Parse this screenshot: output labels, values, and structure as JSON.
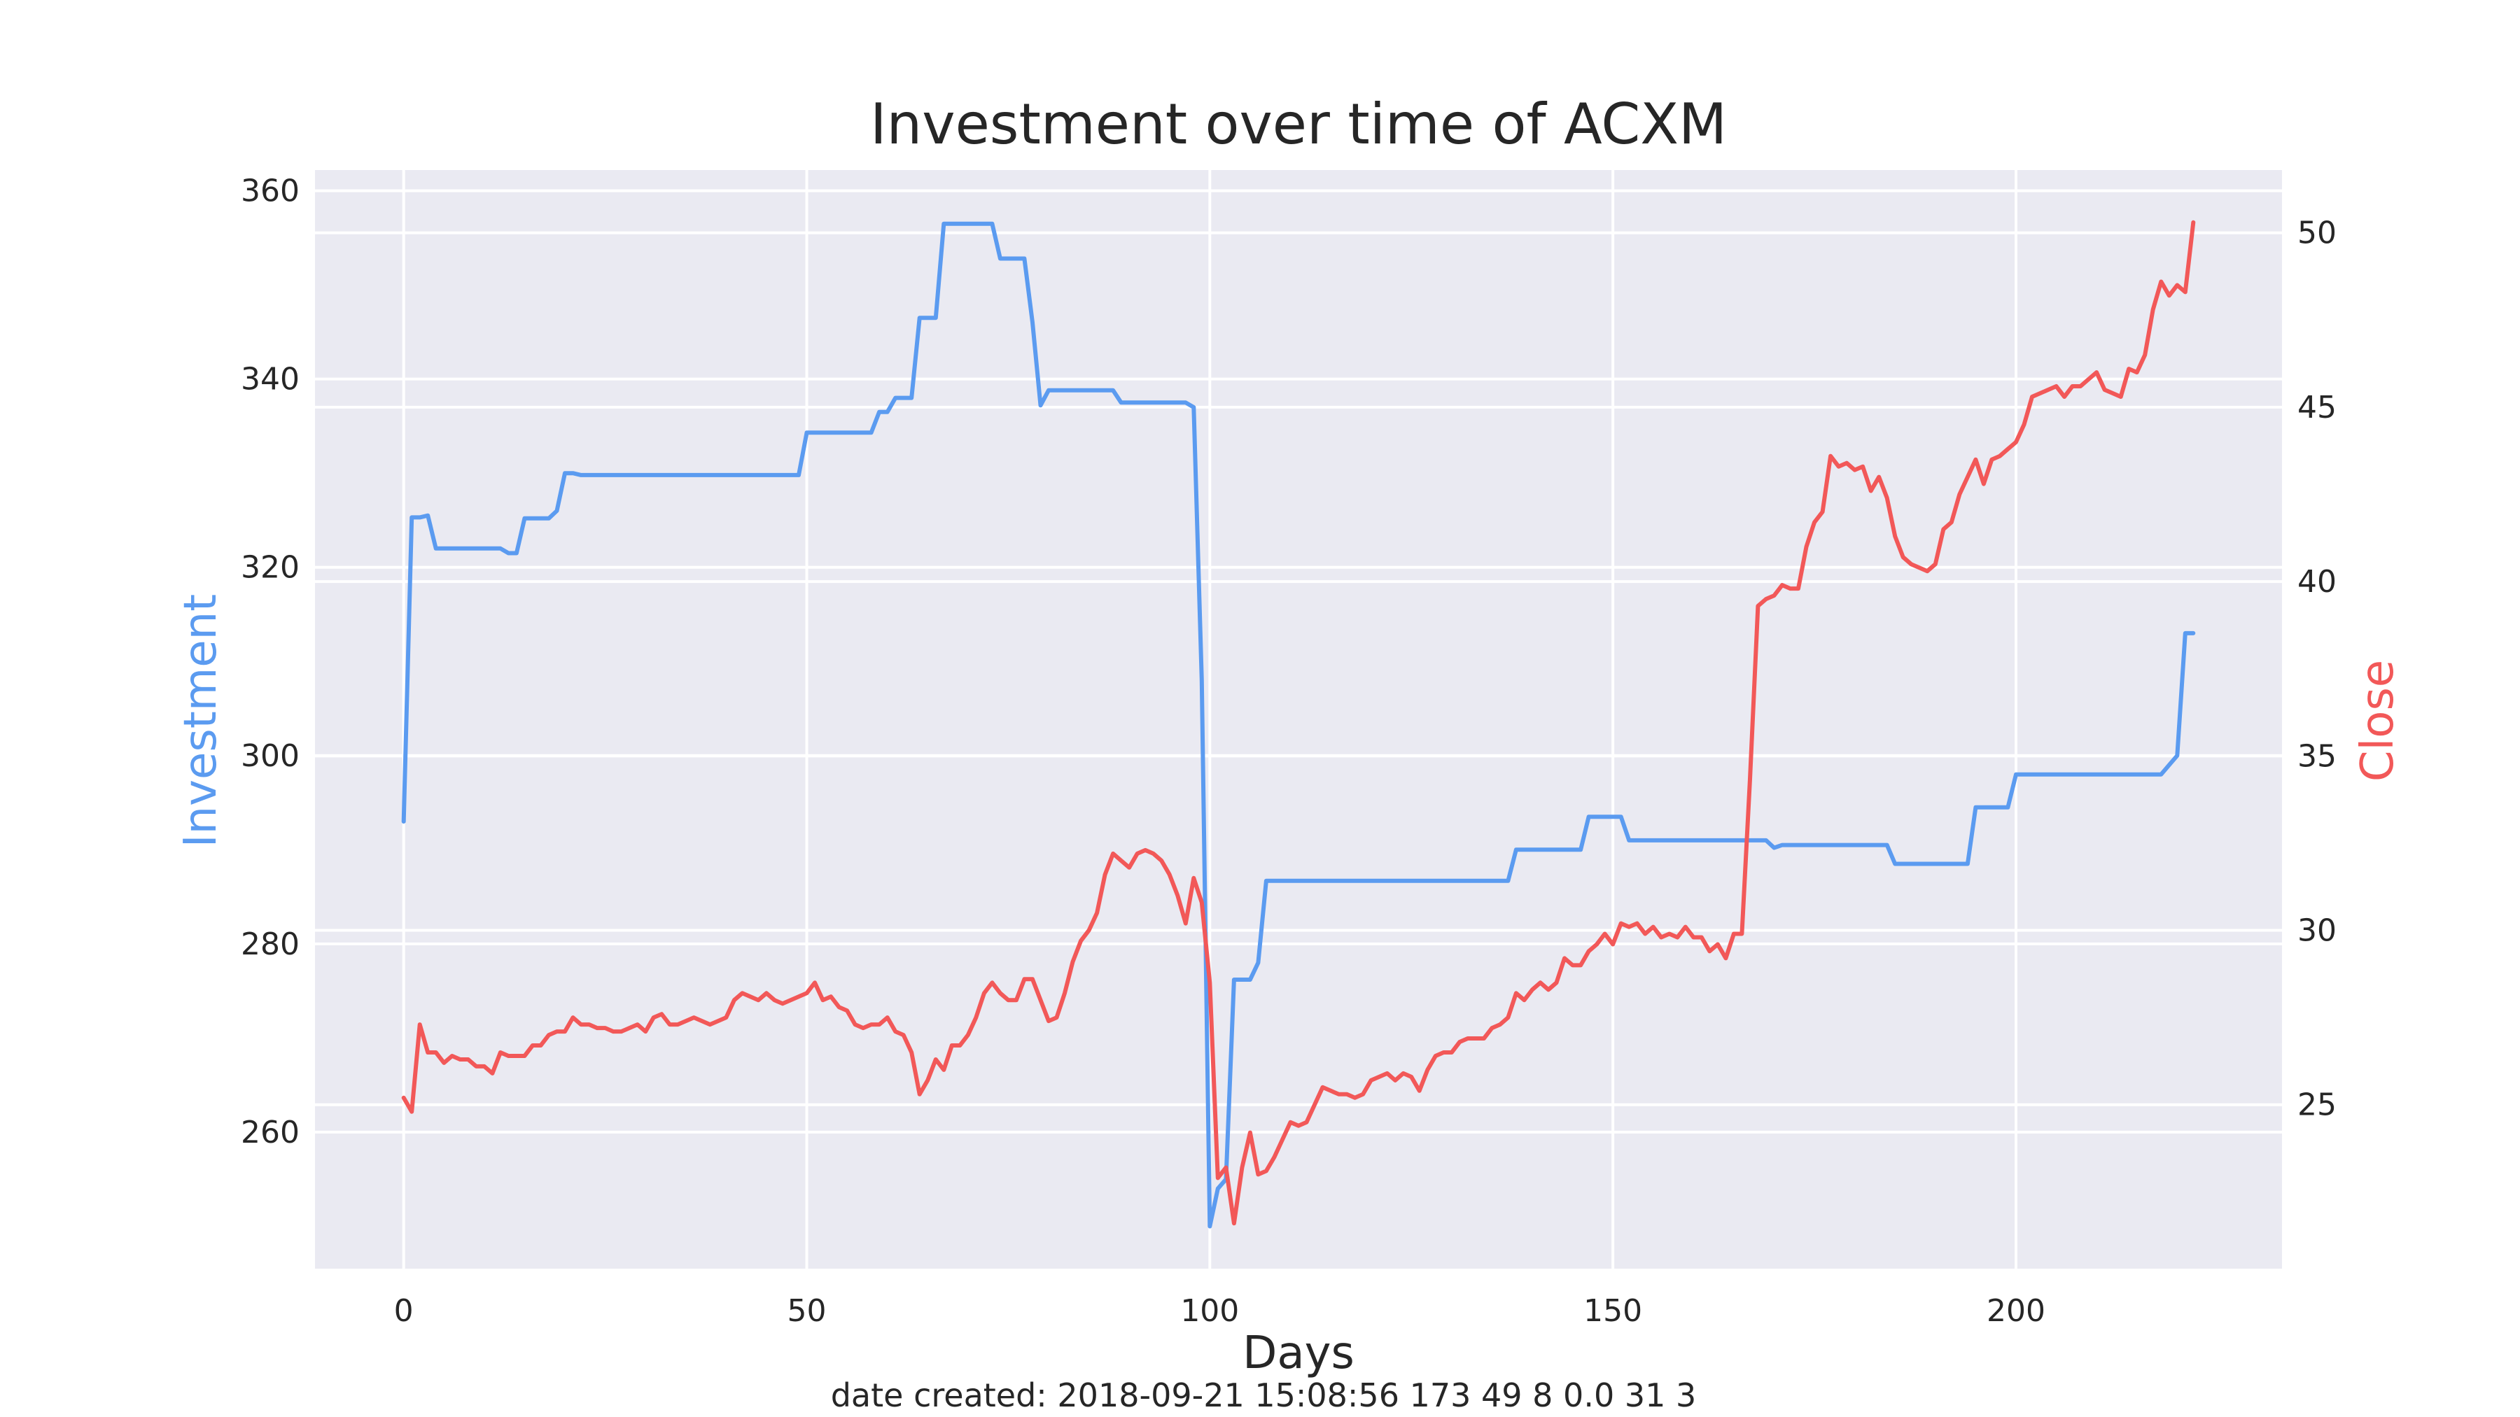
{
  "chart_data": {
    "type": "line",
    "title": "Investment over time of ACXM",
    "xlabel": "Days",
    "footer": "date created: 2018-09-21 15:08:56 173 49 8 0.0 31 3",
    "xlim": [
      -11,
      233
    ],
    "x_ticks": [
      0,
      50,
      100,
      150,
      200
    ],
    "grid": true,
    "axes": [
      {
        "id": "left",
        "label": "Investment",
        "color": "#5b9bf0",
        "ylim": [
          245.5,
          362.2
        ],
        "ticks": [
          260,
          280,
          300,
          320,
          340,
          360
        ]
      },
      {
        "id": "right",
        "label": "Close",
        "color": "#f25858",
        "ylim": [
          20.3,
          51.8
        ],
        "ticks": [
          25,
          30,
          35,
          40,
          45,
          50
        ]
      }
    ],
    "series": [
      {
        "axis": "left",
        "color": "#5b9bf0",
        "points": [
          [
            0,
            293.0
          ],
          [
            1,
            325.3
          ],
          [
            2,
            325.3
          ],
          [
            3,
            325.5
          ],
          [
            4,
            322.0
          ],
          [
            5,
            322.0
          ],
          [
            11,
            322.0
          ],
          [
            12,
            322.0
          ],
          [
            13,
            321.5
          ],
          [
            14,
            321.5
          ],
          [
            15,
            325.2
          ],
          [
            18,
            325.2
          ],
          [
            19,
            326.0
          ],
          [
            20,
            330.0
          ],
          [
            21,
            330.0
          ],
          [
            22,
            329.8
          ],
          [
            49,
            329.8
          ],
          [
            50,
            334.3
          ],
          [
            58,
            334.3
          ],
          [
            59,
            336.5
          ],
          [
            60,
            336.5
          ],
          [
            61,
            338.0
          ],
          [
            63,
            338.0
          ],
          [
            64,
            346.5
          ],
          [
            66,
            346.5
          ],
          [
            67,
            356.5
          ],
          [
            73,
            356.5
          ],
          [
            74,
            352.8
          ],
          [
            77,
            352.8
          ],
          [
            78,
            346.0
          ],
          [
            79,
            337.2
          ],
          [
            80,
            338.8
          ],
          [
            88,
            338.8
          ],
          [
            89,
            337.5
          ],
          [
            97,
            337.5
          ],
          [
            98,
            337.0
          ],
          [
            99,
            308.0
          ],
          [
            100,
            250.0
          ],
          [
            101,
            254.0
          ],
          [
            102,
            255.0
          ],
          [
            103,
            276.2
          ],
          [
            105,
            276.2
          ],
          [
            106,
            278.0
          ],
          [
            107,
            286.7
          ],
          [
            137,
            286.7
          ],
          [
            138,
            290.0
          ],
          [
            146,
            290.0
          ],
          [
            147,
            293.5
          ],
          [
            151,
            293.5
          ],
          [
            152,
            291.0
          ],
          [
            169,
            291.0
          ],
          [
            170,
            290.2
          ],
          [
            171,
            290.5
          ],
          [
            184,
            290.5
          ],
          [
            185,
            288.5
          ],
          [
            194,
            288.5
          ],
          [
            195,
            294.5
          ],
          [
            199,
            294.5
          ],
          [
            200,
            298.0
          ],
          [
            218,
            298.0
          ],
          [
            219,
            299.0
          ],
          [
            220,
            300.0
          ],
          [
            221,
            313.0
          ],
          [
            222,
            313.0
          ]
        ]
      },
      {
        "axis": "right",
        "color": "#f25858",
        "points": [
          [
            0,
            25.2
          ],
          [
            1,
            24.8
          ],
          [
            2,
            27.3
          ],
          [
            3,
            26.5
          ],
          [
            4,
            26.5
          ],
          [
            5,
            26.2
          ],
          [
            6,
            26.4
          ],
          [
            7,
            26.3
          ],
          [
            8,
            26.3
          ],
          [
            9,
            26.1
          ],
          [
            10,
            26.1
          ],
          [
            11,
            25.9
          ],
          [
            12,
            26.5
          ],
          [
            13,
            26.4
          ],
          [
            14,
            26.4
          ],
          [
            15,
            26.4
          ],
          [
            16,
            26.7
          ],
          [
            17,
            26.7
          ],
          [
            18,
            27.0
          ],
          [
            19,
            27.1
          ],
          [
            20,
            27.1
          ],
          [
            21,
            27.5
          ],
          [
            22,
            27.3
          ],
          [
            23,
            27.3
          ],
          [
            24,
            27.2
          ],
          [
            25,
            27.2
          ],
          [
            26,
            27.1
          ],
          [
            27,
            27.1
          ],
          [
            28,
            27.2
          ],
          [
            29,
            27.3
          ],
          [
            30,
            27.1
          ],
          [
            31,
            27.5
          ],
          [
            32,
            27.6
          ],
          [
            33,
            27.3
          ],
          [
            34,
            27.3
          ],
          [
            35,
            27.4
          ],
          [
            36,
            27.5
          ],
          [
            37,
            27.4
          ],
          [
            38,
            27.3
          ],
          [
            39,
            27.4
          ],
          [
            40,
            27.5
          ],
          [
            41,
            28.0
          ],
          [
            42,
            28.2
          ],
          [
            43,
            28.1
          ],
          [
            44,
            28.0
          ],
          [
            45,
            28.2
          ],
          [
            46,
            28.0
          ],
          [
            47,
            27.9
          ],
          [
            48,
            28.0
          ],
          [
            49,
            28.1
          ],
          [
            50,
            28.2
          ],
          [
            51,
            28.5
          ],
          [
            52,
            28.0
          ],
          [
            53,
            28.1
          ],
          [
            54,
            27.8
          ],
          [
            55,
            27.7
          ],
          [
            56,
            27.3
          ],
          [
            57,
            27.2
          ],
          [
            58,
            27.3
          ],
          [
            59,
            27.3
          ],
          [
            60,
            27.5
          ],
          [
            61,
            27.1
          ],
          [
            62,
            27.0
          ],
          [
            63,
            26.5
          ],
          [
            64,
            25.3
          ],
          [
            65,
            25.7
          ],
          [
            66,
            26.3
          ],
          [
            67,
            26.0
          ],
          [
            68,
            26.7
          ],
          [
            69,
            26.7
          ],
          [
            70,
            27.0
          ],
          [
            71,
            27.5
          ],
          [
            72,
            28.2
          ],
          [
            73,
            28.5
          ],
          [
            74,
            28.2
          ],
          [
            75,
            28.0
          ],
          [
            76,
            28.0
          ],
          [
            77,
            28.6
          ],
          [
            78,
            28.6
          ],
          [
            79,
            28.0
          ],
          [
            80,
            27.4
          ],
          [
            81,
            27.5
          ],
          [
            82,
            28.2
          ],
          [
            83,
            29.1
          ],
          [
            84,
            29.7
          ],
          [
            85,
            30.0
          ],
          [
            86,
            30.5
          ],
          [
            87,
            31.6
          ],
          [
            88,
            32.2
          ],
          [
            89,
            32.0
          ],
          [
            90,
            31.8
          ],
          [
            91,
            32.2
          ],
          [
            92,
            32.3
          ],
          [
            93,
            32.2
          ],
          [
            94,
            32.0
          ],
          [
            95,
            31.6
          ],
          [
            96,
            31.0
          ],
          [
            97,
            30.2
          ],
          [
            98,
            31.5
          ],
          [
            99,
            30.8
          ],
          [
            100,
            28.5
          ],
          [
            101,
            22.9
          ],
          [
            102,
            23.2
          ],
          [
            103,
            21.6
          ],
          [
            104,
            23.2
          ],
          [
            105,
            24.2
          ],
          [
            106,
            23.0
          ],
          [
            107,
            23.1
          ],
          [
            108,
            23.5
          ],
          [
            109,
            24.0
          ],
          [
            110,
            24.5
          ],
          [
            111,
            24.4
          ],
          [
            112,
            24.5
          ],
          [
            113,
            25.0
          ],
          [
            114,
            25.5
          ],
          [
            115,
            25.4
          ],
          [
            116,
            25.3
          ],
          [
            117,
            25.3
          ],
          [
            118,
            25.2
          ],
          [
            119,
            25.3
          ],
          [
            120,
            25.7
          ],
          [
            121,
            25.8
          ],
          [
            122,
            25.9
          ],
          [
            123,
            25.7
          ],
          [
            124,
            25.9
          ],
          [
            125,
            25.8
          ],
          [
            126,
            25.4
          ],
          [
            127,
            26.0
          ],
          [
            128,
            26.4
          ],
          [
            129,
            26.5
          ],
          [
            130,
            26.5
          ],
          [
            131,
            26.8
          ],
          [
            132,
            26.9
          ],
          [
            133,
            26.9
          ],
          [
            134,
            26.9
          ],
          [
            135,
            27.2
          ],
          [
            136,
            27.3
          ],
          [
            137,
            27.5
          ],
          [
            138,
            28.2
          ],
          [
            139,
            28.0
          ],
          [
            140,
            28.3
          ],
          [
            141,
            28.5
          ],
          [
            142,
            28.3
          ],
          [
            143,
            28.5
          ],
          [
            144,
            29.2
          ],
          [
            145,
            29.0
          ],
          [
            146,
            29.0
          ],
          [
            147,
            29.4
          ],
          [
            148,
            29.6
          ],
          [
            149,
            29.9
          ],
          [
            150,
            29.6
          ],
          [
            151,
            30.2
          ],
          [
            152,
            30.1
          ],
          [
            153,
            30.2
          ],
          [
            154,
            29.9
          ],
          [
            155,
            30.1
          ],
          [
            156,
            29.8
          ],
          [
            157,
            29.9
          ],
          [
            158,
            29.8
          ],
          [
            159,
            30.1
          ],
          [
            160,
            29.8
          ],
          [
            161,
            29.8
          ],
          [
            162,
            29.4
          ],
          [
            163,
            29.6
          ],
          [
            164,
            29.2
          ],
          [
            165,
            29.9
          ],
          [
            166,
            29.9
          ],
          [
            167,
            34.3
          ],
          [
            168,
            39.3
          ],
          [
            169,
            39.5
          ],
          [
            170,
            39.6
          ],
          [
            171,
            39.9
          ],
          [
            172,
            39.8
          ],
          [
            173,
            39.8
          ],
          [
            174,
            41.0
          ],
          [
            175,
            41.7
          ],
          [
            176,
            42.0
          ],
          [
            177,
            43.6
          ],
          [
            178,
            43.3
          ],
          [
            179,
            43.4
          ],
          [
            180,
            43.2
          ],
          [
            181,
            43.3
          ],
          [
            182,
            42.6
          ],
          [
            183,
            43.0
          ],
          [
            184,
            42.4
          ],
          [
            185,
            41.3
          ],
          [
            186,
            40.7
          ],
          [
            187,
            40.5
          ],
          [
            188,
            40.4
          ],
          [
            189,
            40.3
          ],
          [
            190,
            40.5
          ],
          [
            191,
            41.5
          ],
          [
            192,
            41.7
          ],
          [
            193,
            42.5
          ],
          [
            194,
            43.0
          ],
          [
            195,
            43.5
          ],
          [
            196,
            42.8
          ],
          [
            197,
            43.5
          ],
          [
            198,
            43.6
          ],
          [
            199,
            43.8
          ],
          [
            200,
            44.0
          ],
          [
            201,
            44.5
          ],
          [
            202,
            45.3
          ],
          [
            203,
            45.4
          ],
          [
            204,
            45.5
          ],
          [
            205,
            45.6
          ],
          [
            206,
            45.3
          ],
          [
            207,
            45.6
          ],
          [
            208,
            45.6
          ],
          [
            209,
            45.8
          ],
          [
            210,
            46.0
          ],
          [
            211,
            45.5
          ],
          [
            212,
            45.4
          ],
          [
            213,
            45.3
          ],
          [
            214,
            46.1
          ],
          [
            215,
            46.0
          ],
          [
            216,
            46.5
          ],
          [
            217,
            47.8
          ],
          [
            218,
            48.6
          ],
          [
            219,
            48.2
          ],
          [
            220,
            48.5
          ],
          [
            221,
            48.3
          ],
          [
            222,
            50.3
          ]
        ]
      }
    ]
  }
}
